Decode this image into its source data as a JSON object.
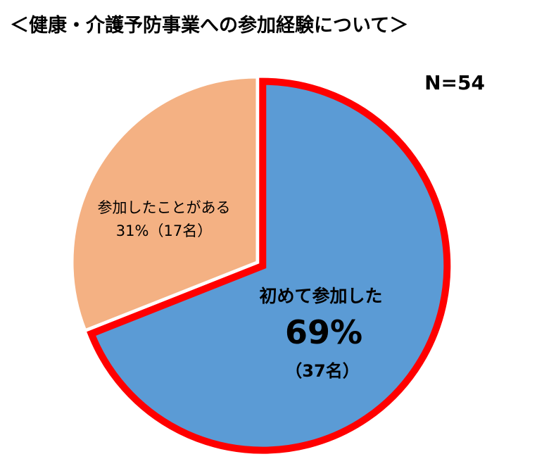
{
  "chart_data": {
    "type": "pie",
    "title": "＜健康・介護予防事業への参加経験について＞",
    "n_label": "N=54",
    "slices": [
      {
        "name": "初めて参加した",
        "percent": 69,
        "percent_label": "69%",
        "count_label": "（37名）",
        "color": "#5B9BD5",
        "highlight_border": "#FF0000",
        "exploded": true
      },
      {
        "name": "参加したことがある",
        "percent": 31,
        "percent_label": "31%（17名）",
        "count_label": "",
        "color": "#F4B183",
        "highlight_border": "",
        "exploded": false
      }
    ],
    "start_angle": "12 o'clock",
    "direction": "clockwise",
    "legend": "none"
  }
}
